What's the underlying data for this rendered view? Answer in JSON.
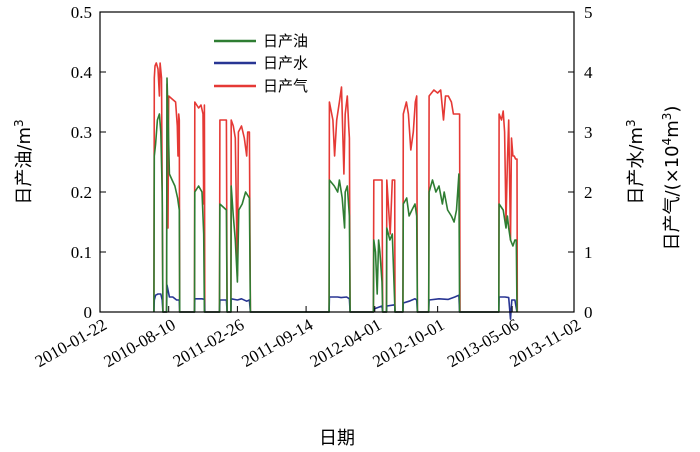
{
  "chart_data": {
    "type": "line",
    "xlabel": "日期",
    "ylabel_left": "日产油/m",
    "ylabel_left_sup": "3",
    "ylabel_right": "日产水/m",
    "ylabel_right_sup": "3",
    "ylabel_right2_prefix": "日产气/(×10",
    "ylabel_right2_sup1": "4",
    "ylabel_right2_mid": "m",
    "ylabel_right2_sup2": "3",
    "ylabel_right2_suffix": ")",
    "xlim": [
      "2010-01-22",
      "2013-11-02"
    ],
    "x_ticks": [
      "2010-01-22",
      "2010-08-10",
      "2011-02-26",
      "2011-09-14",
      "2012-04-01",
      "2012-10-01",
      "2013-05-06",
      "2013-11-02"
    ],
    "ylim_left": [
      0,
      0.5
    ],
    "y_ticks_left": [
      "0",
      "0.1",
      "0.2",
      "0.3",
      "0.4",
      "0.5"
    ],
    "ylim_right": [
      0,
      5
    ],
    "y_ticks_right": [
      "0",
      "1",
      "2",
      "3",
      "4",
      "5"
    ],
    "legend_position": "top-center",
    "series": [
      {
        "name": "日产油",
        "axis": "left",
        "color": "#2e7d32",
        "points": [
          [
            "2010-06-28",
            0
          ],
          [
            "2010-06-29",
            0.26
          ],
          [
            "2010-07-03",
            0.28
          ],
          [
            "2010-07-08",
            0.32
          ],
          [
            "2010-07-14",
            0.33
          ],
          [
            "2010-07-18",
            0.3
          ],
          [
            "2010-07-22",
            0.2
          ],
          [
            "2010-07-24",
            0
          ],
          [
            "2010-08-04",
            0
          ],
          [
            "2010-08-05",
            0.39
          ],
          [
            "2010-08-08",
            0.33
          ],
          [
            "2010-08-12",
            0.23
          ],
          [
            "2010-08-20",
            0.22
          ],
          [
            "2010-08-28",
            0.21
          ],
          [
            "2010-09-05",
            0.19
          ],
          [
            "2010-09-10",
            0.17
          ],
          [
            "2010-09-11",
            0
          ],
          [
            "2010-10-24",
            0
          ],
          [
            "2010-10-25",
            0.2
          ],
          [
            "2010-11-05",
            0.21
          ],
          [
            "2010-11-15",
            0.2
          ],
          [
            "2010-11-20",
            0.13
          ],
          [
            "2010-11-22",
            0
          ],
          [
            "2011-01-05",
            0
          ],
          [
            "2011-01-06",
            0.18
          ],
          [
            "2011-01-25",
            0.17
          ],
          [
            "2011-01-27",
            0
          ],
          [
            "2011-02-07",
            0
          ],
          [
            "2011-02-08",
            0.21
          ],
          [
            "2011-02-14",
            0.16
          ],
          [
            "2011-02-20",
            0.12
          ],
          [
            "2011-02-26",
            0.05
          ],
          [
            "2011-03-02",
            0.17
          ],
          [
            "2011-03-12",
            0.18
          ],
          [
            "2011-03-22",
            0.2
          ],
          [
            "2011-04-02",
            0.19
          ],
          [
            "2011-04-05",
            0
          ],
          [
            "2011-11-20",
            0
          ],
          [
            "2011-11-21",
            0.22
          ],
          [
            "2011-12-05",
            0.21
          ],
          [
            "2011-12-15",
            0.2
          ],
          [
            "2011-12-20",
            0.22
          ],
          [
            "2011-12-28",
            0.19
          ],
          [
            "2012-01-04",
            0.14
          ],
          [
            "2012-01-06",
            0.2
          ],
          [
            "2012-01-12",
            0.21
          ],
          [
            "2012-01-18",
            0.16
          ],
          [
            "2012-01-20",
            0
          ],
          [
            "2012-03-28",
            0
          ],
          [
            "2012-03-29",
            0.12
          ],
          [
            "2012-04-03",
            0.1
          ],
          [
            "2012-04-08",
            0.03
          ],
          [
            "2012-04-12",
            0.12
          ],
          [
            "2012-04-16",
            0.1
          ],
          [
            "2012-04-22",
            0.05
          ],
          [
            "2012-04-24",
            0
          ],
          [
            "2012-05-05",
            0
          ],
          [
            "2012-05-06",
            0.14
          ],
          [
            "2012-05-15",
            0.12
          ],
          [
            "2012-05-22",
            0.13
          ],
          [
            "2012-05-30",
            0
          ],
          [
            "2012-06-22",
            0
          ],
          [
            "2012-06-23",
            0.18
          ],
          [
            "2012-07-03",
            0.19
          ],
          [
            "2012-07-10",
            0.16
          ],
          [
            "2012-07-18",
            0.17
          ],
          [
            "2012-07-27",
            0.18
          ],
          [
            "2012-08-01",
            0.16
          ],
          [
            "2012-08-03",
            0
          ],
          [
            "2012-09-05",
            0
          ],
          [
            "2012-09-06",
            0.2
          ],
          [
            "2012-09-16",
            0.22
          ],
          [
            "2012-09-26",
            0.2
          ],
          [
            "2012-10-05",
            0.21
          ],
          [
            "2012-10-15",
            0.18
          ],
          [
            "2012-10-20",
            0.2
          ],
          [
            "2012-10-30",
            0.17
          ],
          [
            "2012-11-10",
            0.16
          ],
          [
            "2012-11-18",
            0.15
          ],
          [
            "2012-11-25",
            0.17
          ],
          [
            "2012-12-02",
            0.23
          ],
          [
            "2012-12-04",
            0
          ],
          [
            "2013-03-28",
            0
          ],
          [
            "2013-03-29",
            0.18
          ],
          [
            "2013-04-10",
            0.17
          ],
          [
            "2013-04-18",
            0.14
          ],
          [
            "2013-04-22",
            0.16
          ],
          [
            "2013-04-26",
            0.14
          ],
          [
            "2013-05-01",
            0.12
          ],
          [
            "2013-05-08",
            0.11
          ],
          [
            "2013-05-14",
            0.12
          ],
          [
            "2013-05-18",
            0.12
          ],
          [
            "2013-05-20",
            0
          ]
        ]
      },
      {
        "name": "日产水",
        "axis": "right",
        "color": "#283593",
        "points": [
          [
            "2010-06-28",
            0
          ],
          [
            "2010-06-29",
            0.2
          ],
          [
            "2010-07-03",
            0.28
          ],
          [
            "2010-07-10",
            0.3
          ],
          [
            "2010-07-18",
            0.3
          ],
          [
            "2010-07-22",
            0.2
          ],
          [
            "2010-07-24",
            0
          ],
          [
            "2010-08-04",
            0
          ],
          [
            "2010-08-05",
            0.45
          ],
          [
            "2010-08-12",
            0.25
          ],
          [
            "2010-08-22",
            0.25
          ],
          [
            "2010-09-02",
            0.2
          ],
          [
            "2010-09-10",
            0.2
          ],
          [
            "2010-09-11",
            0
          ],
          [
            "2010-10-24",
            0
          ],
          [
            "2010-10-25",
            0.22
          ],
          [
            "2010-11-15",
            0.22
          ],
          [
            "2010-11-22",
            0.21
          ],
          [
            "2010-11-23",
            0
          ],
          [
            "2011-01-05",
            0
          ],
          [
            "2011-01-06",
            0.2
          ],
          [
            "2011-01-25",
            0.2
          ],
          [
            "2011-01-27",
            0
          ],
          [
            "2011-02-07",
            0
          ],
          [
            "2011-02-08",
            0.22
          ],
          [
            "2011-02-26",
            0.2
          ],
          [
            "2011-03-10",
            0.22
          ],
          [
            "2011-03-25",
            0.18
          ],
          [
            "2011-04-02",
            0.2
          ],
          [
            "2011-04-05",
            0
          ],
          [
            "2011-11-20",
            0
          ],
          [
            "2011-11-21",
            0.25
          ],
          [
            "2011-12-15",
            0.25
          ],
          [
            "2011-12-25",
            0.24
          ],
          [
            "2012-01-10",
            0.25
          ],
          [
            "2012-01-18",
            0.22
          ],
          [
            "2012-01-20",
            0
          ],
          [
            "2012-03-28",
            0
          ],
          [
            "2012-03-29",
            0.05
          ],
          [
            "2012-04-22",
            0.1
          ],
          [
            "2012-04-24",
            0
          ],
          [
            "2012-05-05",
            0
          ],
          [
            "2012-05-06",
            0.1
          ],
          [
            "2012-05-29",
            0.12
          ],
          [
            "2012-05-30",
            0
          ],
          [
            "2012-06-22",
            0
          ],
          [
            "2012-06-23",
            0.15
          ],
          [
            "2012-07-10",
            0.18
          ],
          [
            "2012-07-27",
            0.22
          ],
          [
            "2012-08-01",
            0.2
          ],
          [
            "2012-08-03",
            0
          ],
          [
            "2012-09-05",
            0
          ],
          [
            "2012-09-06",
            0.2
          ],
          [
            "2012-10-05",
            0.22
          ],
          [
            "2012-11-01",
            0.21
          ],
          [
            "2012-11-20",
            0.25
          ],
          [
            "2012-12-02",
            0.28
          ],
          [
            "2012-12-04",
            0
          ],
          [
            "2013-03-28",
            0
          ],
          [
            "2013-03-29",
            0.25
          ],
          [
            "2013-04-15",
            0.25
          ],
          [
            "2013-04-26",
            0.24
          ],
          [
            "2013-05-01",
            -0.12
          ],
          [
            "2013-05-05",
            0.2
          ],
          [
            "2013-05-14",
            0.2
          ],
          [
            "2013-05-20",
            0
          ]
        ]
      },
      {
        "name": "日产气",
        "axis": "right",
        "color": "#e53935",
        "points": [
          [
            "2010-06-28",
            0
          ],
          [
            "2010-06-29",
            3.9
          ],
          [
            "2010-07-01",
            4.1
          ],
          [
            "2010-07-05",
            4.15
          ],
          [
            "2010-07-10",
            4.05
          ],
          [
            "2010-07-14",
            3.6
          ],
          [
            "2010-07-16",
            4.15
          ],
          [
            "2010-07-20",
            3.9
          ],
          [
            "2010-07-22",
            2.0
          ],
          [
            "2010-07-24",
            0
          ],
          [
            "2010-08-04",
            0
          ],
          [
            "2010-08-05",
            3.8
          ],
          [
            "2010-08-08",
            1.4
          ],
          [
            "2010-08-10",
            3.6
          ],
          [
            "2010-08-20",
            3.55
          ],
          [
            "2010-08-30",
            3.5
          ],
          [
            "2010-09-04",
            3.1
          ],
          [
            "2010-09-06",
            2.6
          ],
          [
            "2010-09-08",
            3.3
          ],
          [
            "2010-09-10",
            3.2
          ],
          [
            "2010-09-11",
            0
          ],
          [
            "2010-10-24",
            0
          ],
          [
            "2010-10-25",
            3.5
          ],
          [
            "2010-11-05",
            3.4
          ],
          [
            "2010-11-12",
            3.45
          ],
          [
            "2010-11-18",
            3.3
          ],
          [
            "2010-11-20",
            1.8
          ],
          [
            "2010-11-22",
            3.45
          ],
          [
            "2010-11-23",
            0
          ],
          [
            "2011-01-05",
            0
          ],
          [
            "2011-01-06",
            3.2
          ],
          [
            "2011-01-15",
            3.2
          ],
          [
            "2011-01-25",
            3.2
          ],
          [
            "2011-01-27",
            0
          ],
          [
            "2011-02-07",
            0
          ],
          [
            "2011-02-08",
            3.2
          ],
          [
            "2011-02-14",
            3.1
          ],
          [
            "2011-02-20",
            2.9
          ],
          [
            "2011-02-26",
            0.6
          ],
          [
            "2011-03-01",
            3.0
          ],
          [
            "2011-03-10",
            3.1
          ],
          [
            "2011-03-18",
            2.9
          ],
          [
            "2011-03-25",
            2.6
          ],
          [
            "2011-03-28",
            3.0
          ],
          [
            "2011-04-02",
            3.0
          ],
          [
            "2011-04-05",
            0
          ],
          [
            "2011-11-20",
            0
          ],
          [
            "2011-11-21",
            3.5
          ],
          [
            "2011-12-01",
            3.2
          ],
          [
            "2011-12-06",
            2.6
          ],
          [
            "2011-12-12",
            3.2
          ],
          [
            "2011-12-20",
            3.5
          ],
          [
            "2011-12-26",
            3.75
          ],
          [
            "2012-01-02",
            2.3
          ],
          [
            "2012-01-06",
            3.3
          ],
          [
            "2012-01-12",
            3.6
          ],
          [
            "2012-01-16",
            3.1
          ],
          [
            "2012-01-18",
            2.9
          ],
          [
            "2012-01-20",
            0
          ],
          [
            "2012-03-28",
            0
          ],
          [
            "2012-03-29",
            2.2
          ],
          [
            "2012-04-15",
            2.2
          ],
          [
            "2012-04-22",
            2.2
          ],
          [
            "2012-04-24",
            0
          ],
          [
            "2012-05-05",
            0
          ],
          [
            "2012-05-06",
            2.2
          ],
          [
            "2012-05-16",
            1.3
          ],
          [
            "2012-05-22",
            2.2
          ],
          [
            "2012-05-29",
            2.2
          ],
          [
            "2012-05-30",
            0
          ],
          [
            "2012-06-22",
            0
          ],
          [
            "2012-06-23",
            3.3
          ],
          [
            "2012-07-02",
            3.5
          ],
          [
            "2012-07-08",
            3.3
          ],
          [
            "2012-07-15",
            2.7
          ],
          [
            "2012-07-22",
            3.0
          ],
          [
            "2012-07-28",
            3.5
          ],
          [
            "2012-08-01",
            3.6
          ],
          [
            "2012-08-03",
            0
          ],
          [
            "2012-09-05",
            0
          ],
          [
            "2012-09-06",
            3.6
          ],
          [
            "2012-09-20",
            3.7
          ],
          [
            "2012-10-01",
            3.65
          ],
          [
            "2012-10-10",
            3.7
          ],
          [
            "2012-10-18",
            3.2
          ],
          [
            "2012-10-24",
            3.6
          ],
          [
            "2012-11-01",
            3.6
          ],
          [
            "2012-11-10",
            3.5
          ],
          [
            "2012-11-16",
            3.3
          ],
          [
            "2012-11-25",
            3.3
          ],
          [
            "2012-12-04",
            3.3
          ],
          [
            "2012-12-05",
            0
          ],
          [
            "2013-03-28",
            0
          ],
          [
            "2013-03-29",
            3.3
          ],
          [
            "2013-04-05",
            3.2
          ],
          [
            "2013-04-10",
            3.35
          ],
          [
            "2013-04-14",
            3.0
          ],
          [
            "2013-04-18",
            1.5
          ],
          [
            "2013-04-22",
            2.5
          ],
          [
            "2013-04-26",
            3.2
          ],
          [
            "2013-05-01",
            1.2
          ],
          [
            "2013-05-04",
            2.9
          ],
          [
            "2013-05-08",
            2.6
          ],
          [
            "2013-05-12",
            2.6
          ],
          [
            "2013-05-16",
            2.55
          ],
          [
            "2013-05-20",
            2.55
          ],
          [
            "2013-05-21",
            0
          ]
        ]
      }
    ]
  }
}
